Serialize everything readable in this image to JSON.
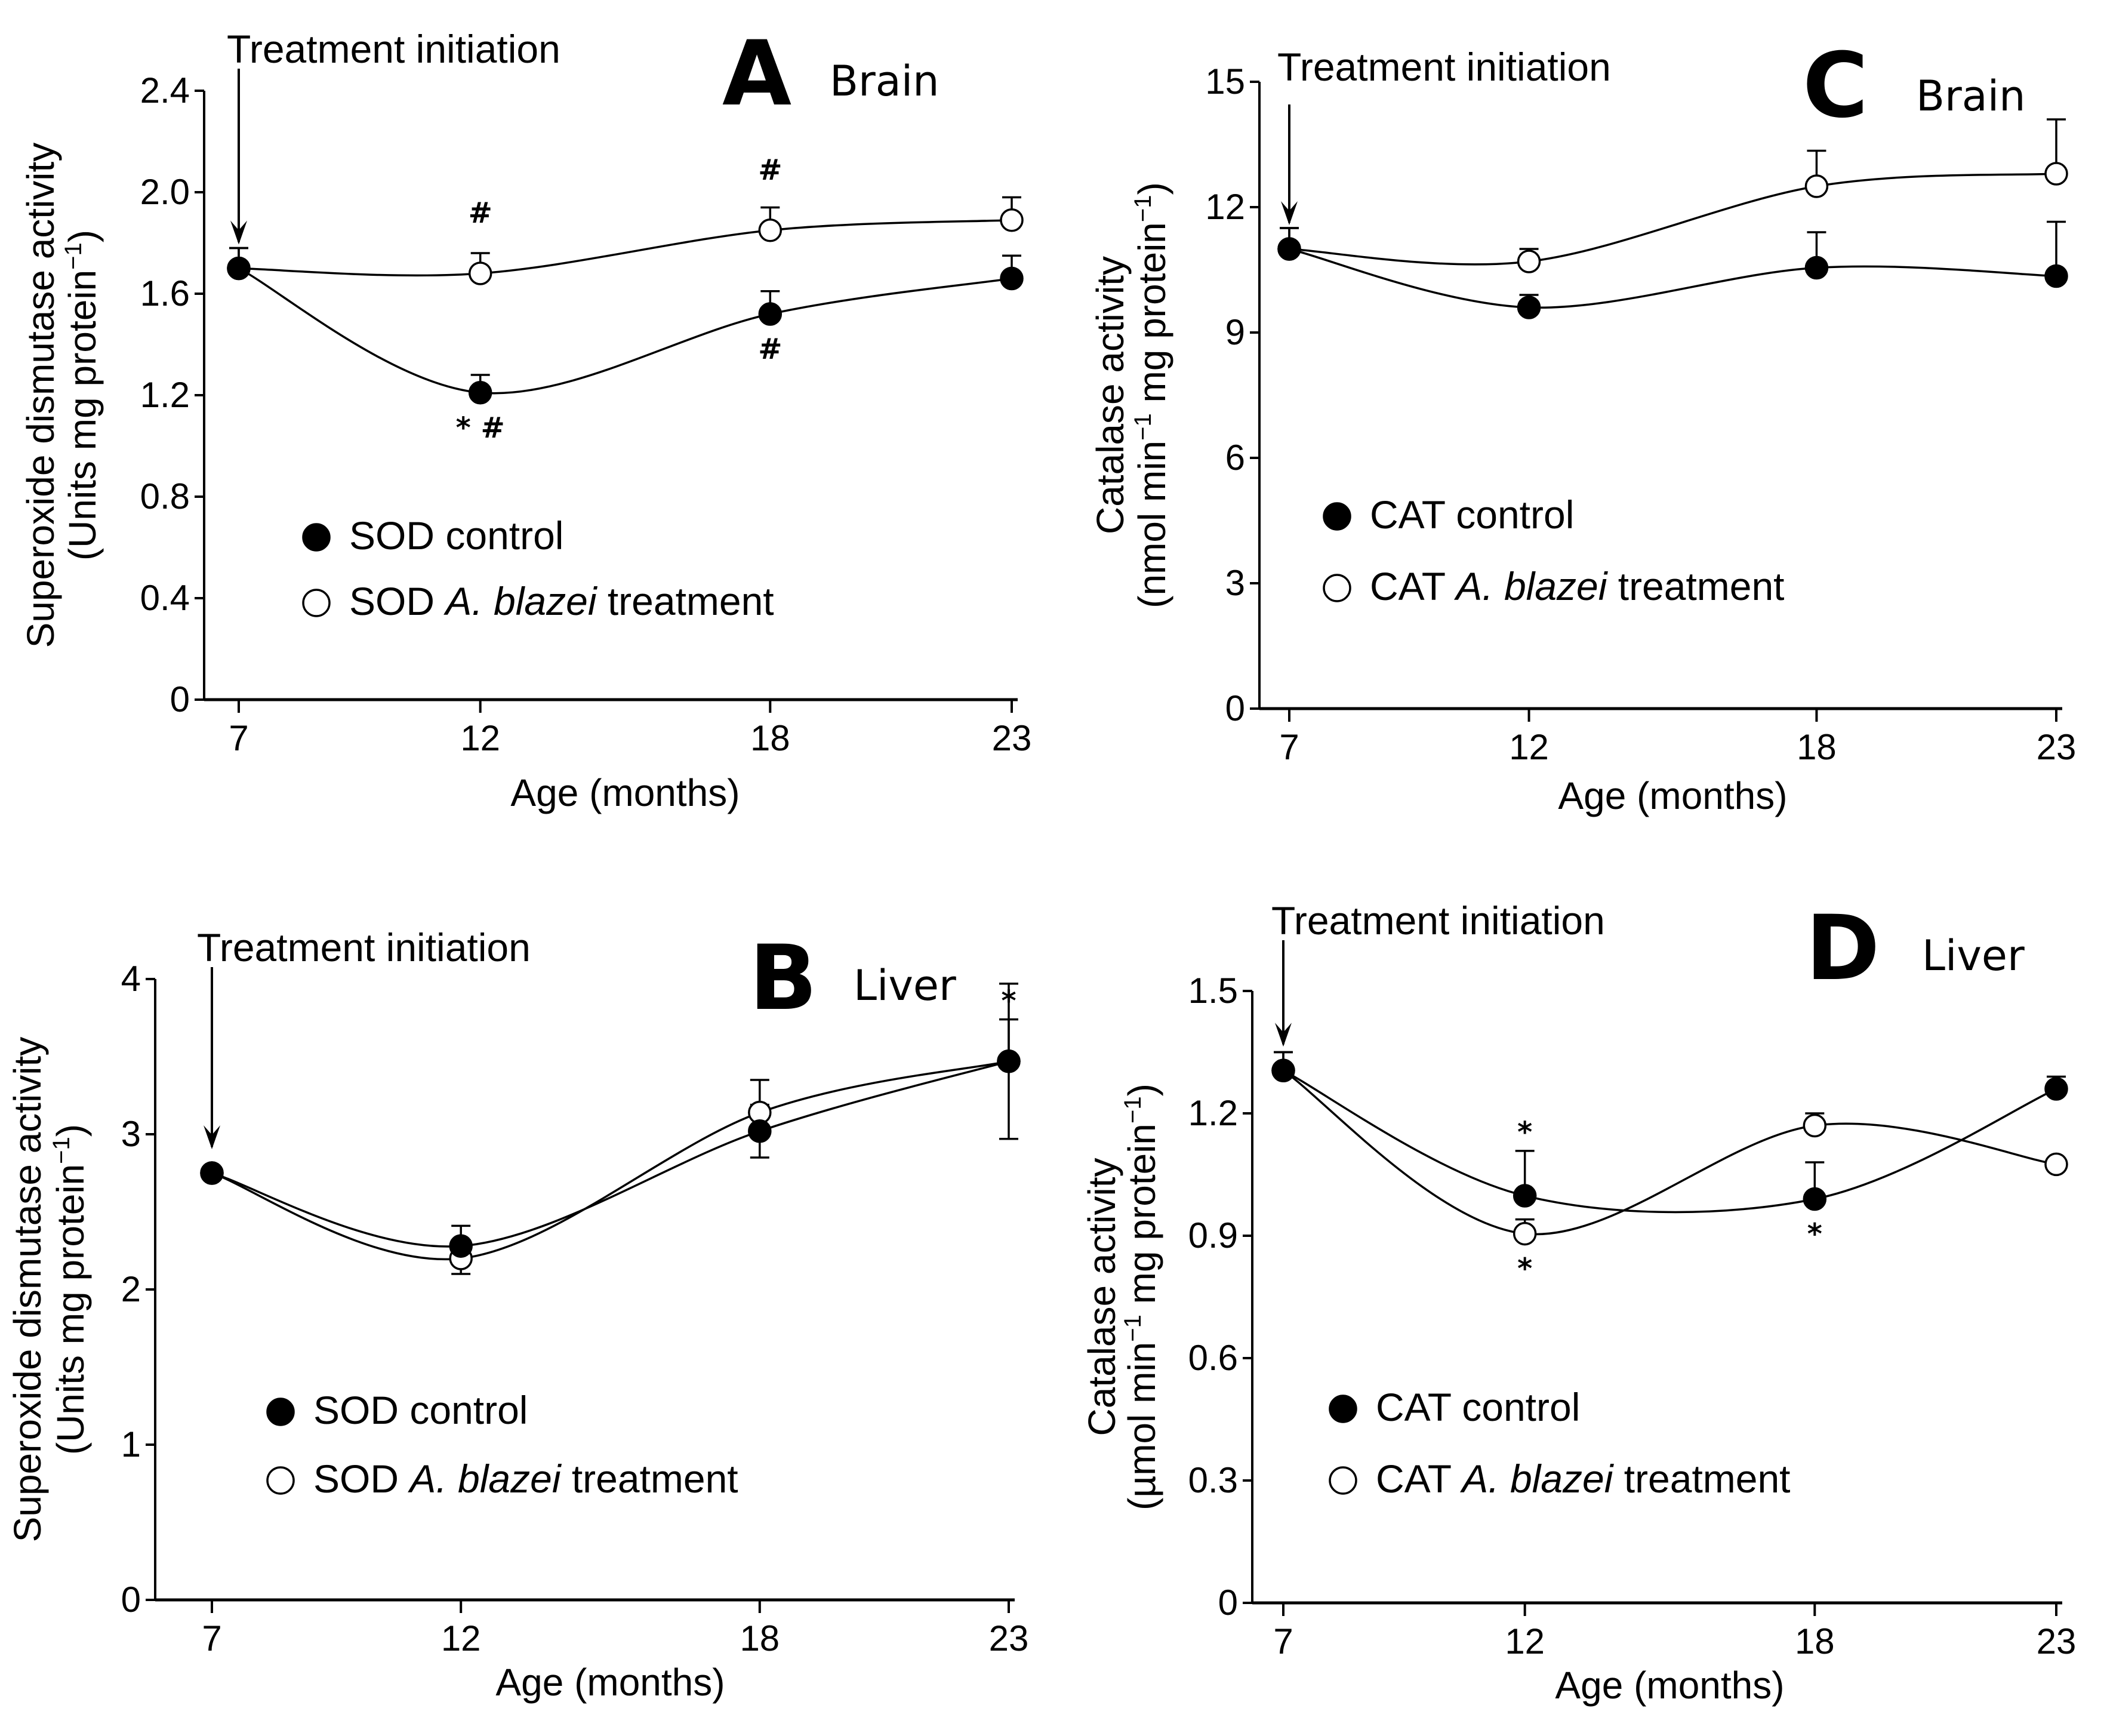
{
  "colors": {
    "filled": "#000000",
    "open": "#ffffff",
    "line": "#000000"
  },
  "chart_data": [
    {
      "type": "line",
      "panel": "A",
      "tissue": "Brain",
      "annotation": "Treatment initiation",
      "annotation_x": 7,
      "xlabel": "Age (months)",
      "ylabel_line1": "Superoxide dismutase  activity",
      "ylabel_line2": "(Units mg protein",
      "ylabel_sup": "−1",
      "ylabel_close": ")",
      "x": [
        7,
        12,
        18,
        23
      ],
      "x_ticks": [
        "7",
        "12",
        "18",
        "23"
      ],
      "ylim": [
        0,
        2.4
      ],
      "y_ticks": [
        "0",
        "0.4",
        "0.8",
        "1.2",
        "1.6",
        "2.0",
        "2.4"
      ],
      "y_tick_values": [
        0,
        0.4,
        0.8,
        1.2,
        1.6,
        2.0,
        2.4
      ],
      "series": [
        {
          "name": "SOD control",
          "name_prefix": "SOD",
          "name_italic": "",
          "name_suffix": " control",
          "marker": "filled",
          "values": [
            1.7,
            1.21,
            1.52,
            1.66
          ],
          "errors": [
            0.08,
            0.07,
            0.09,
            0.09
          ]
        },
        {
          "name": "SOD A. blazei treatment",
          "name_prefix": "SOD ",
          "name_italic": "A. blazei",
          "name_suffix": " treatment",
          "marker": "open",
          "values": [
            1.7,
            1.68,
            1.85,
            1.89
          ],
          "errors": [
            0.08,
            0.08,
            0.09,
            0.09
          ]
        }
      ],
      "significance": [
        {
          "x": 12,
          "y": 1.21,
          "pos": "below",
          "text": "* #"
        },
        {
          "x": 18,
          "y": 1.52,
          "pos": "below",
          "text": "#"
        },
        {
          "x": 12,
          "y": 1.68,
          "pos": "above",
          "text": "#"
        },
        {
          "x": 18,
          "y": 1.85,
          "pos": "above",
          "text": "#"
        }
      ]
    },
    {
      "type": "line",
      "panel": "B",
      "tissue": "Liver",
      "annotation": "Treatment initiation",
      "annotation_x": 7,
      "xlabel": "Age (months)",
      "ylabel_line1": "Superoxide dismutase  activity",
      "ylabel_line2": "(Units mg protein",
      "ylabel_sup": "−1",
      "ylabel_close": ")",
      "x": [
        7,
        12,
        18,
        23
      ],
      "x_ticks": [
        "7",
        "12",
        "18",
        "23"
      ],
      "ylim": [
        0,
        4
      ],
      "y_ticks": [
        "0",
        "1",
        "2",
        "3",
        "4"
      ],
      "y_tick_values": [
        0,
        1,
        2,
        3,
        4
      ],
      "series": [
        {
          "name": "SOD control",
          "name_prefix": "SOD",
          "name_italic": "",
          "name_suffix": " control",
          "marker": "filled",
          "values": [
            2.75,
            2.28,
            3.02,
            3.47
          ],
          "errors": [
            0.0,
            0.13,
            0.17,
            0.5
          ]
        },
        {
          "name": "SOD A. blazei treatment",
          "name_prefix": "SOD ",
          "name_italic": "A. blazei",
          "name_suffix": " treatment",
          "marker": "open",
          "values": [
            2.75,
            2.2,
            3.14,
            3.47
          ],
          "errors": [
            0.0,
            0.1,
            0.21,
            0.27
          ]
        }
      ],
      "significance": [
        {
          "x": 23,
          "y": 3.47,
          "pos": "above",
          "text": "*"
        }
      ]
    },
    {
      "type": "line",
      "panel": "C",
      "tissue": "Brain",
      "annotation": "Treatment initiation",
      "annotation_x": 7,
      "xlabel": "Age (months)",
      "ylabel_line1": "Catalase activity",
      "ylabel_line2": "(nmol min",
      "ylabel_sup": "−1",
      "ylabel_mid": " mg protein",
      "ylabel_sup2": "−1",
      "ylabel_close": ")",
      "x": [
        7,
        12,
        18,
        23
      ],
      "x_ticks": [
        "7",
        "12",
        "18",
        "23"
      ],
      "ylim": [
        0,
        15
      ],
      "y_ticks": [
        "0",
        "3",
        "6",
        "9",
        "12",
        "15"
      ],
      "y_tick_values": [
        0,
        3,
        6,
        9,
        12,
        15
      ],
      "series": [
        {
          "name": "CAT control",
          "name_prefix": "CAT",
          "name_italic": "",
          "name_suffix": " control",
          "marker": "filled",
          "values": [
            11.0,
            9.6,
            10.55,
            10.35
          ],
          "errors": [
            0.5,
            0.3,
            0.85,
            1.3
          ]
        },
        {
          "name": "CAT A. blazei treatment",
          "name_prefix": "CAT ",
          "name_italic": "A. blazei",
          "name_suffix": " treatment",
          "marker": "open",
          "values": [
            11.0,
            10.7,
            12.5,
            12.8
          ],
          "errors": [
            0.5,
            0.3,
            0.85,
            1.3
          ]
        }
      ],
      "significance": []
    },
    {
      "type": "line",
      "panel": "D",
      "tissue": "Liver",
      "annotation": "Treatment initiation",
      "annotation_x": 7,
      "xlabel": "Age (months)",
      "ylabel_line1": "Catalase activity",
      "ylabel_line2": "(µmol min",
      "ylabel_sup": "−1",
      "ylabel_mid": " mg protein",
      "ylabel_sup2": "−1",
      "ylabel_close": ")",
      "x": [
        7,
        12,
        18,
        23
      ],
      "x_ticks": [
        "7",
        "12",
        "18",
        "23"
      ],
      "ylim": [
        0,
        1.5
      ],
      "y_ticks": [
        "0",
        "0.3",
        "0.6",
        "0.9",
        "1.2",
        "1.5"
      ],
      "y_tick_values": [
        0,
        0.3,
        0.6,
        0.9,
        1.2,
        1.5
      ],
      "series": [
        {
          "name": "CAT control",
          "name_prefix": "CAT",
          "name_italic": "",
          "name_suffix": " control",
          "marker": "filled",
          "values": [
            1.305,
            0.998,
            0.99,
            1.26
          ],
          "errors": [
            0.045,
            0.11,
            0.09,
            0.03
          ]
        },
        {
          "name": "CAT A. blazei treatment",
          "name_prefix": "CAT ",
          "name_italic": "A. blazei",
          "name_suffix": " treatment",
          "marker": "open",
          "values": [
            1.305,
            0.905,
            1.17,
            1.075
          ],
          "errors": [
            0.045,
            0.035,
            0.03,
            0.0
          ]
        }
      ],
      "significance": [
        {
          "x": 12,
          "y": 0.998,
          "pos": "above-bar",
          "text": "*"
        },
        {
          "x": 12,
          "y": 0.905,
          "pos": "below",
          "text": "*"
        },
        {
          "x": 18,
          "y": 0.99,
          "pos": "below",
          "text": "*"
        }
      ]
    }
  ]
}
